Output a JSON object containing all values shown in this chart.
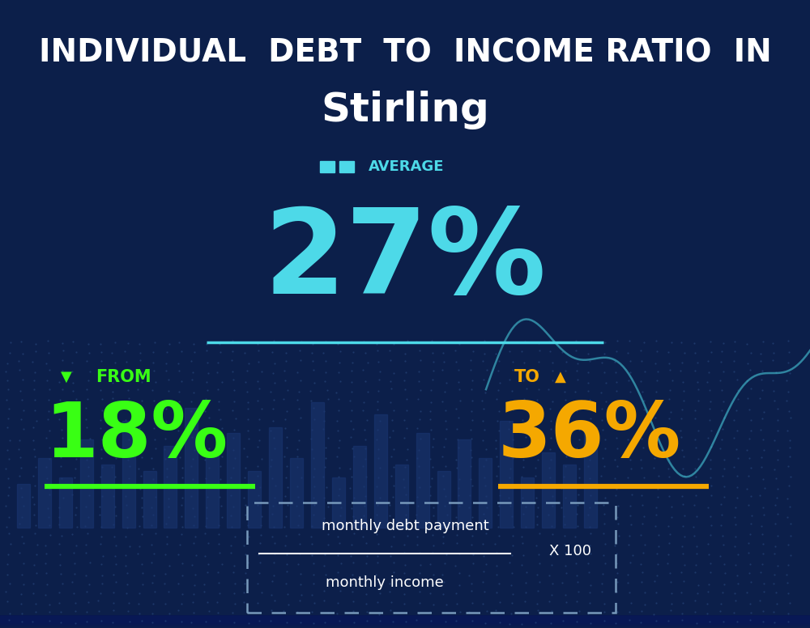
{
  "title_line1": "INDIVIDUAL  DEBT  TO  INCOME RATIO  IN",
  "title_line2": "Stirling",
  "avg_label": "AVERAGE",
  "avg_value": "27%",
  "from_label": "FROM",
  "from_value": "18%",
  "to_label": "TO",
  "to_value": "36%",
  "formula_top": "monthly debt payment",
  "formula_bottom": "monthly income",
  "formula_multiplier": "X 100",
  "bg_color": "#0c1f4a",
  "bg_color_bottom": "#0a1a40",
  "cyan_color": "#4dd9e8",
  "green_color": "#39ff14",
  "yellow_color": "#f5a800",
  "white_color": "#ffffff",
  "dashed_border_color": "#7799bb",
  "title_fontsize": 28,
  "subtitle_fontsize": 36,
  "avg_label_fontsize": 13,
  "avg_value_fontsize": 105,
  "from_to_label_fontsize": 15,
  "from_to_value_fontsize": 68,
  "formula_fontsize": 13
}
